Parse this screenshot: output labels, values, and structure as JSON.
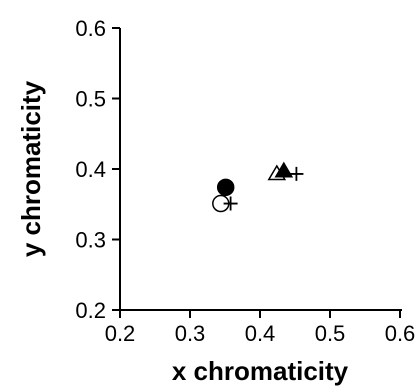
{
  "chart_data": {
    "type": "scatter",
    "title": "",
    "xlabel": "x chromaticity",
    "ylabel": "y chromaticity",
    "xlim": [
      0.2,
      0.6
    ],
    "ylim": [
      0.2,
      0.6
    ],
    "xticks": [
      "0.2",
      "0.3",
      "0.4",
      "0.5",
      "0.6"
    ],
    "yticks": [
      "0.2",
      "0.3",
      "0.4",
      "0.5",
      "0.6"
    ],
    "grid": false,
    "legend": "none",
    "colors": {
      "ink": "#000000",
      "background": "#ffffff"
    },
    "points": [
      {
        "x": 0.351,
        "y": 0.374,
        "marker": "filled-circle"
      },
      {
        "x": 0.344,
        "y": 0.351,
        "marker": "open-circle"
      },
      {
        "x": 0.358,
        "y": 0.351,
        "marker": "plus"
      },
      {
        "x": 0.434,
        "y": 0.397,
        "marker": "filled-triangle"
      },
      {
        "x": 0.424,
        "y": 0.393,
        "marker": "open-triangle"
      },
      {
        "x": 0.452,
        "y": 0.393,
        "marker": "plus"
      }
    ]
  }
}
